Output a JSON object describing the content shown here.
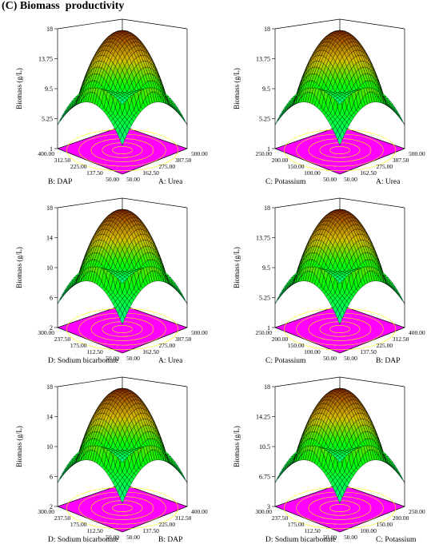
{
  "title": "(C) Biomass  productivity",
  "colors": {
    "floor": "#ff00ff",
    "contour": "#ffff00",
    "low": "#00ffff",
    "mid": "#00ff00",
    "high": "#8b2b00",
    "mesh": "#000000"
  },
  "chart_data": [
    {
      "type": "surface",
      "zlabel": "Biomass (g/L)",
      "zticks": [
        "1",
        "5.25",
        "9.5",
        "13.75",
        "18"
      ],
      "zlim": [
        1,
        18
      ],
      "left_axis": {
        "label": "B: DAP",
        "ticks": [
          "50.00",
          "137.50",
          "225.00",
          "312.50",
          "400.00"
        ]
      },
      "right_axis": {
        "label": "A: Urea",
        "ticks": [
          "50.00",
          "162.50",
          "275.00",
          "387.50",
          "500.00"
        ]
      },
      "peak": 18,
      "min": 1
    },
    {
      "type": "surface",
      "zlabel": "Biomass (g/L)",
      "zticks": [
        "1",
        "5.25",
        "9.5",
        "13.75",
        "18"
      ],
      "zlim": [
        1,
        18
      ],
      "left_axis": {
        "label": "C: Potassium",
        "ticks": [
          "50.00",
          "100.00",
          "150.00",
          "200.00",
          "250.00"
        ]
      },
      "right_axis": {
        "label": "A: Urea",
        "ticks": [
          "50.00",
          "162.50",
          "275.00",
          "387.50",
          "500.00"
        ]
      },
      "peak": 18,
      "min": 1
    },
    {
      "type": "surface",
      "zlabel": "Biomass (g/L)",
      "zticks": [
        "2",
        "6",
        "10",
        "14",
        "18"
      ],
      "zlim": [
        2,
        18
      ],
      "left_axis": {
        "label": "D: Sodium bicarbonate",
        "ticks": [
          "50.00",
          "112.50",
          "175.00",
          "237.50",
          "300.00"
        ]
      },
      "right_axis": {
        "label": "A: Urea",
        "ticks": [
          "50.00",
          "162.50",
          "275.00",
          "387.50",
          "500.00"
        ]
      },
      "peak": 18,
      "min": 2
    },
    {
      "type": "surface",
      "zlabel": "Biomass (g/L)",
      "zticks": [
        "1",
        "5.25",
        "9.5",
        "13.75",
        "18"
      ],
      "zlim": [
        1,
        18
      ],
      "left_axis": {
        "label": "C: Potassium",
        "ticks": [
          "50.00",
          "100.00",
          "150.00",
          "200.00",
          "250.00"
        ]
      },
      "right_axis": {
        "label": "B: DAP",
        "ticks": [
          "50.00",
          "137.50",
          "225.00",
          "312.50",
          "400.00"
        ]
      },
      "peak": 18,
      "min": 1
    },
    {
      "type": "surface",
      "zlabel": "Biomass (g/L)",
      "zticks": [
        "2",
        "6",
        "10",
        "14",
        "18"
      ],
      "zlim": [
        2,
        18
      ],
      "left_axis": {
        "label": "D: Sodium bicarbonate",
        "ticks": [
          "50.00",
          "112.50",
          "175.00",
          "237.50",
          "300.00"
        ]
      },
      "right_axis": {
        "label": "B: DAP",
        "ticks": [
          "50.00",
          "137.50",
          "225.00",
          "312.50",
          "400.00"
        ]
      },
      "peak": 18,
      "min": 2
    },
    {
      "type": "surface",
      "zlabel": "Biomass (g/L)",
      "zticks": [
        "3",
        "6.75",
        "10.5",
        "14.25",
        "18"
      ],
      "zlim": [
        3,
        18
      ],
      "left_axis": {
        "label": "D: Sodium bicarbonate",
        "ticks": [
          "50.00",
          "112.50",
          "175.00",
          "237.50",
          "300.00"
        ]
      },
      "right_axis": {
        "label": "C: Potassium",
        "ticks": [
          "50.00",
          "100.00",
          "150.00",
          "200.00",
          "250.00"
        ]
      },
      "peak": 18,
      "min": 3
    }
  ]
}
